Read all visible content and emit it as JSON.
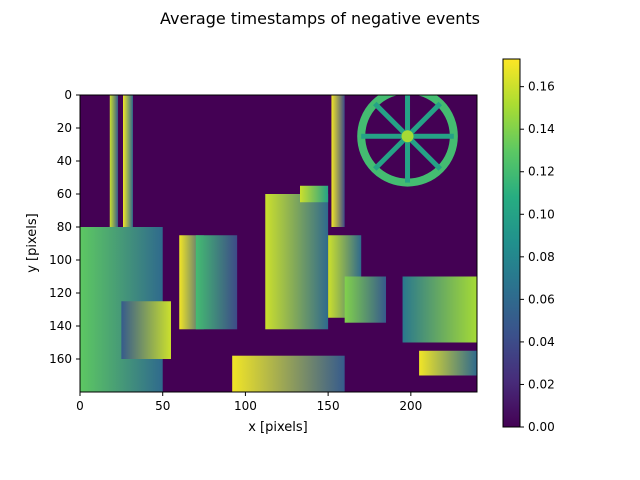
{
  "chart_data": {
    "type": "heatmap",
    "title": "Average timestamps of negative events",
    "xlabel": "x [pixels]",
    "ylabel": "y [pixels]",
    "xlim": [
      0,
      240
    ],
    "ylim": [
      180,
      0
    ],
    "x_ticks": [
      0,
      50,
      100,
      150,
      200
    ],
    "y_ticks": [
      0,
      20,
      40,
      60,
      80,
      100,
      120,
      140,
      160
    ],
    "colormap": "viridis",
    "colorbar": {
      "range": [
        0.0,
        0.173
      ],
      "ticks": [
        "0.00",
        "0.02",
        "0.04",
        "0.06",
        "0.08",
        "0.10",
        "0.12",
        "0.14",
        "0.16"
      ]
    },
    "background_value": 0.0,
    "regions": [
      {
        "kind": "band",
        "x": [
          18,
          23
        ],
        "y": [
          0,
          85
        ],
        "value_left": 0.16,
        "value_right": 0.05
      },
      {
        "kind": "band",
        "x": [
          26,
          32
        ],
        "y": [
          0,
          80
        ],
        "value_left": 0.17,
        "value_right": 0.06
      },
      {
        "kind": "band",
        "x": [
          0,
          50
        ],
        "y": [
          80,
          180
        ],
        "value_left": 0.13,
        "value_right": 0.06
      },
      {
        "kind": "band",
        "x": [
          25,
          55
        ],
        "y": [
          125,
          160
        ],
        "value_left": 0.05,
        "value_right": 0.16
      },
      {
        "kind": "band",
        "x": [
          60,
          75
        ],
        "y": [
          85,
          142
        ],
        "value_left": 0.17,
        "value_right": 0.05
      },
      {
        "kind": "band",
        "x": [
          70,
          95
        ],
        "y": [
          85,
          142
        ],
        "value_left": 0.12,
        "value_right": 0.04
      },
      {
        "kind": "band",
        "x": [
          112,
          150
        ],
        "y": [
          60,
          142
        ],
        "value_left": 0.16,
        "value_right": 0.06
      },
      {
        "kind": "band",
        "x": [
          133,
          150
        ],
        "y": [
          55,
          65
        ],
        "value_left": 0.16,
        "value_right": 0.1
      },
      {
        "kind": "band",
        "x": [
          150,
          170
        ],
        "y": [
          85,
          135
        ],
        "value_left": 0.16,
        "value_right": 0.06
      },
      {
        "kind": "band",
        "x": [
          152,
          160
        ],
        "y": [
          0,
          80
        ],
        "value_left": 0.17,
        "value_right": 0.04
      },
      {
        "kind": "band",
        "x": [
          160,
          185
        ],
        "y": [
          110,
          138
        ],
        "value_left": 0.14,
        "value_right": 0.05
      },
      {
        "kind": "band",
        "x": [
          92,
          160
        ],
        "y": [
          158,
          180
        ],
        "value_left": 0.17,
        "value_right": 0.05
      },
      {
        "kind": "band",
        "x": [
          195,
          240
        ],
        "y": [
          110,
          150
        ],
        "value_left": 0.07,
        "value_right": 0.15
      },
      {
        "kind": "band",
        "x": [
          205,
          240
        ],
        "y": [
          155,
          170
        ],
        "value_left": 0.17,
        "value_right": 0.06
      },
      {
        "kind": "ring",
        "center": [
          198,
          25
        ],
        "radius": 28,
        "value": 0.12
      }
    ]
  }
}
